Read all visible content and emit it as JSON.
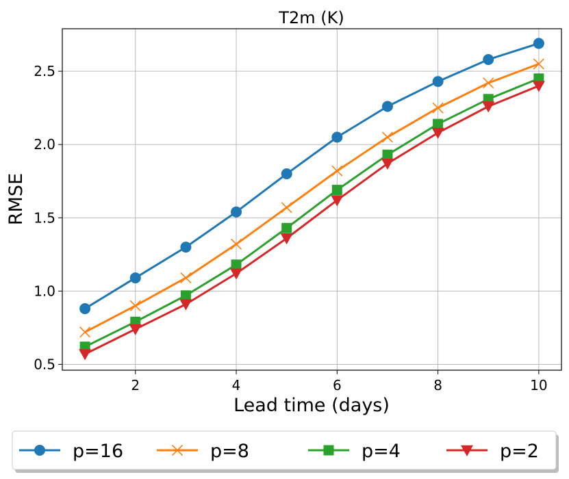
{
  "chart_data": {
    "type": "line",
    "title": "T2m (K)",
    "xlabel": "Lead time (days)",
    "ylabel": "RMSE",
    "x": [
      1,
      2,
      3,
      4,
      5,
      6,
      7,
      8,
      9,
      10
    ],
    "xlim": [
      0.55,
      10.45
    ],
    "ylim": [
      0.46,
      2.79
    ],
    "xticks": [
      2,
      4,
      6,
      8,
      10
    ],
    "yticks": [
      0.5,
      1.0,
      1.5,
      2.0,
      2.5
    ],
    "xtick_labels": [
      "2",
      "4",
      "6",
      "8",
      "10"
    ],
    "ytick_labels": [
      "0.5",
      "1.0",
      "1.5",
      "2.0",
      "2.5"
    ],
    "grid": true,
    "legend_position": "bottom-outside",
    "series": [
      {
        "name": "p=16",
        "color": "#1f77b4",
        "marker": "circle",
        "values": [
          0.88,
          1.09,
          1.3,
          1.54,
          1.8,
          2.05,
          2.26,
          2.43,
          2.58,
          2.69
        ]
      },
      {
        "name": "p=8",
        "color": "#ff7f0e",
        "marker": "x",
        "values": [
          0.72,
          0.9,
          1.09,
          1.32,
          1.57,
          1.82,
          2.05,
          2.25,
          2.42,
          2.55
        ]
      },
      {
        "name": "p=4",
        "color": "#2ca02c",
        "marker": "square",
        "values": [
          0.62,
          0.79,
          0.97,
          1.18,
          1.43,
          1.69,
          1.93,
          2.14,
          2.31,
          2.45
        ]
      },
      {
        "name": "p=2",
        "color": "#d62728",
        "marker": "triangle-down",
        "values": [
          0.57,
          0.74,
          0.91,
          1.12,
          1.36,
          1.62,
          1.87,
          2.08,
          2.26,
          2.4
        ]
      }
    ]
  }
}
